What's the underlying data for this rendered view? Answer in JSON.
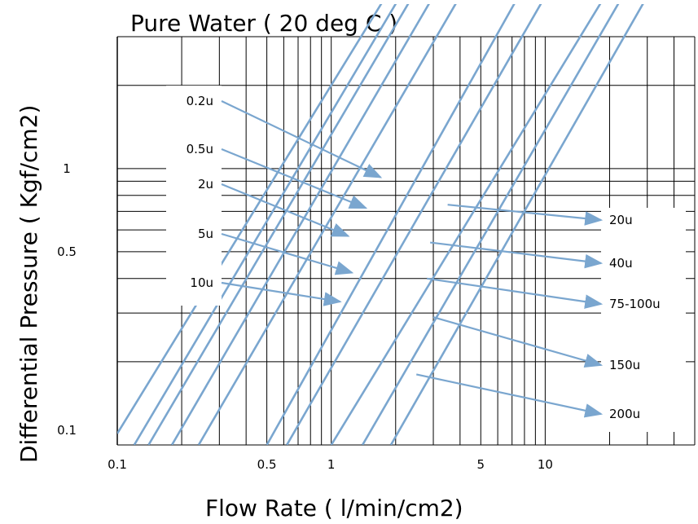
{
  "chart_data": {
    "type": "line",
    "title": "Pure Water  ( 20 deg C )",
    "xlabel": "Flow Rate ( l/min/cm2)",
    "ylabel": "Differential Pressure  ( Kgf/cm2)",
    "x_scale": "log",
    "y_scale": "log",
    "xlim": [
      0.1,
      50
    ],
    "ylim": [
      0.1,
      3
    ],
    "grid": true,
    "legend": "none",
    "series_color": "#7aa6cf",
    "line_color": "#000000",
    "x_ticks": [
      {
        "value": 0.1,
        "label": "0.1"
      },
      {
        "value": 0.5,
        "label": "0.5"
      },
      {
        "value": 1,
        "label": "1"
      },
      {
        "value": 5,
        "label": "5"
      },
      {
        "value": 10,
        "label": "10"
      }
    ],
    "y_ticks": [
      {
        "value": 0.1,
        "label": "0.1"
      },
      {
        "value": 0.5,
        "label": "0.5"
      },
      {
        "value": 1,
        "label": "1"
      }
    ],
    "series": [
      {
        "name": "0.2u",
        "x": [
          0.1,
          1.8
        ],
        "y": [
          0.11,
          4.2
        ]
      },
      {
        "name": "0.5u",
        "x": [
          0.12,
          2.1
        ],
        "y": [
          0.1,
          4.2
        ]
      },
      {
        "name": "2u",
        "x": [
          0.14,
          2.4
        ],
        "y": [
          0.1,
          4.2
        ]
      },
      {
        "name": "5u",
        "x": [
          0.18,
          3.0
        ],
        "y": [
          0.1,
          4.2
        ]
      },
      {
        "name": "10u",
        "x": [
          0.24,
          4.0
        ],
        "y": [
          0.1,
          4.2
        ]
      },
      {
        "name": "20u",
        "x": [
          0.5,
          7.5
        ],
        "y": [
          0.1,
          4.2
        ]
      },
      {
        "name": "40u",
        "x": [
          0.62,
          10
        ],
        "y": [
          0.1,
          4.2
        ]
      },
      {
        "name": "75-100u",
        "x": [
          1.0,
          19
        ],
        "y": [
          0.1,
          4.2
        ]
      },
      {
        "name": "150u",
        "x": [
          1.4,
          23
        ],
        "y": [
          0.1,
          4.2
        ]
      },
      {
        "name": "200u",
        "x": [
          1.9,
          30
        ],
        "y": [
          0.1,
          4.2
        ]
      }
    ],
    "callouts": [
      {
        "label": "0.2u",
        "side": "left",
        "target": {
          "x": 1.7,
          "y": 0.93
        }
      },
      {
        "label": "0.5u",
        "side": "left",
        "target": {
          "x": 1.45,
          "y": 0.72
        }
      },
      {
        "label": "2u",
        "side": "left",
        "target": {
          "x": 1.2,
          "y": 0.57
        }
      },
      {
        "label": "5u",
        "side": "left",
        "target": {
          "x": 1.25,
          "y": 0.42
        }
      },
      {
        "label": "10u",
        "side": "left",
        "target": {
          "x": 1.1,
          "y": 0.33
        }
      },
      {
        "label": "20u",
        "side": "right",
        "target": {
          "x": 3.5,
          "y": 0.74
        }
      },
      {
        "label": "40u",
        "side": "right",
        "target": {
          "x": 2.9,
          "y": 0.54
        }
      },
      {
        "label": "75-100u",
        "side": "right",
        "target": {
          "x": 2.8,
          "y": 0.4
        }
      },
      {
        "label": "150u",
        "side": "right",
        "target": {
          "x": 3.0,
          "y": 0.29
        }
      },
      {
        "label": "200u",
        "side": "right",
        "target": {
          "x": 2.5,
          "y": 0.18
        }
      }
    ]
  }
}
